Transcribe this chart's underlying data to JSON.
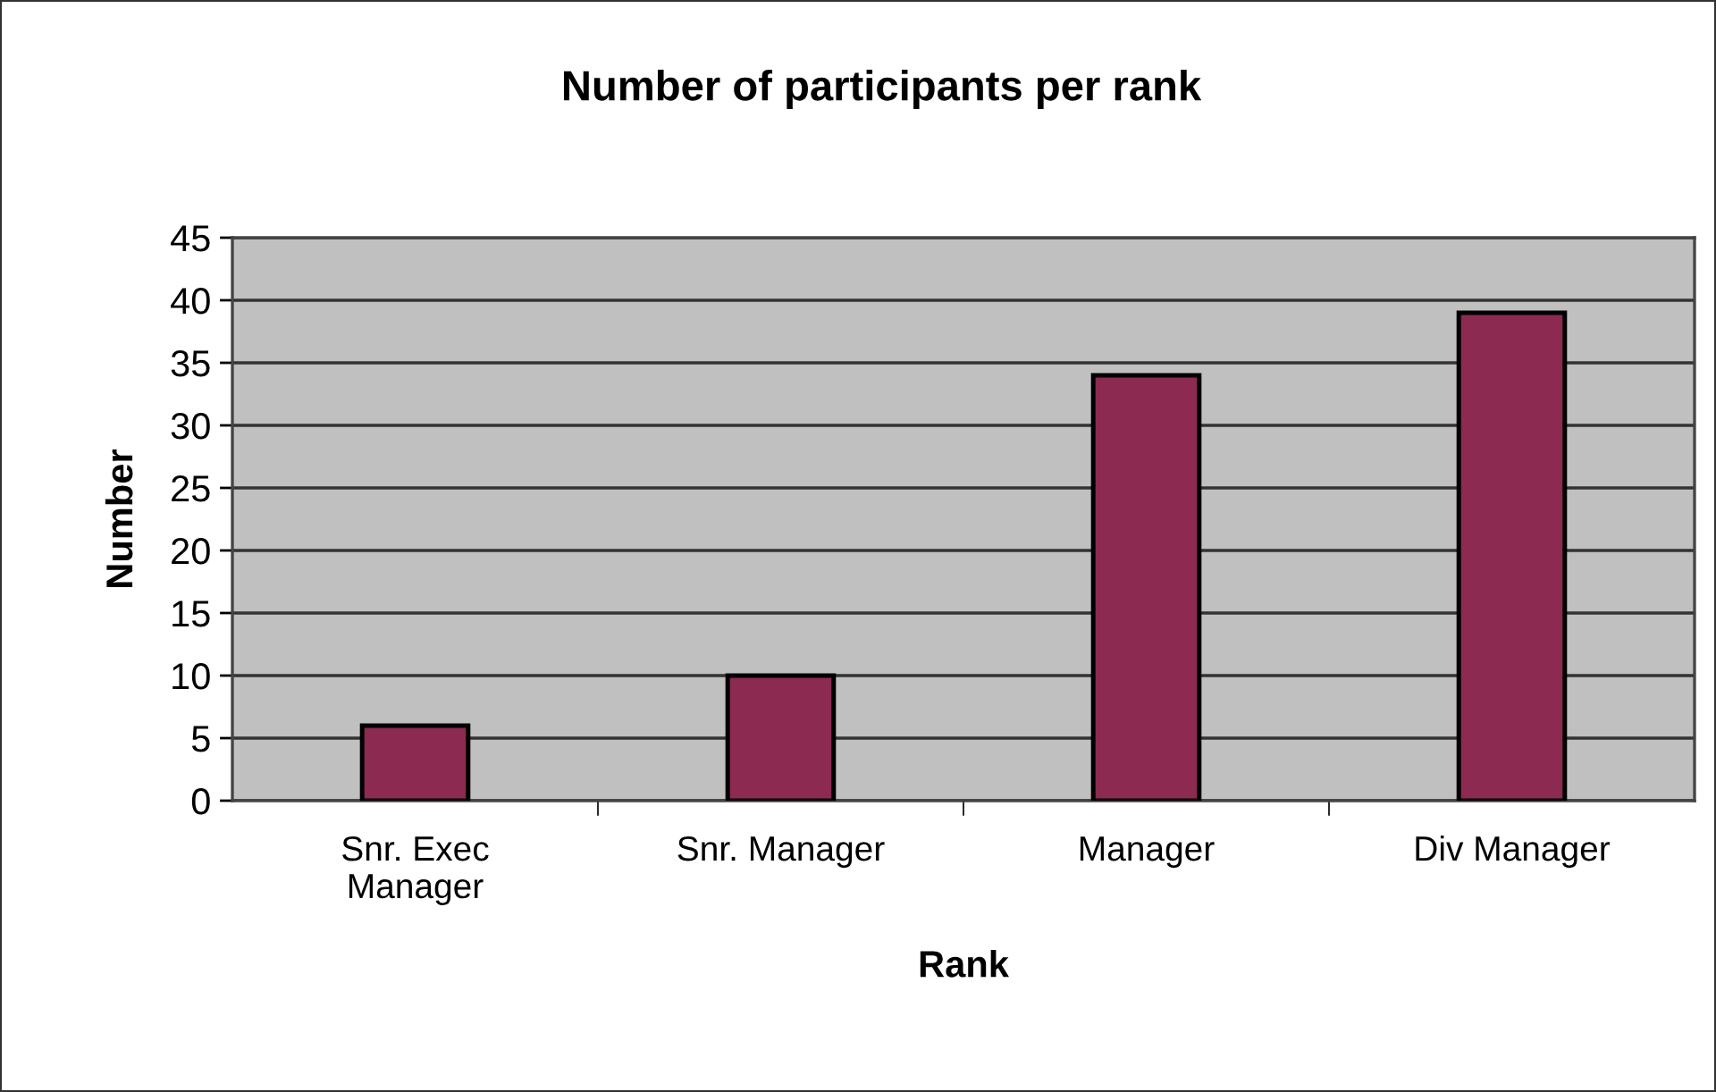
{
  "chart_data": {
    "type": "bar",
    "title": "Number of participants per rank",
    "xlabel": "Rank",
    "ylabel": "Number",
    "categories": [
      "Snr. Exec\nManager",
      "Snr. Manager",
      "Manager",
      "Div Manager"
    ],
    "values": [
      6,
      10,
      34,
      39
    ],
    "color": "#8c2a52",
    "ylim": [
      0,
      45
    ],
    "yticks": [
      0,
      5,
      10,
      15,
      20,
      25,
      30,
      35,
      40,
      45
    ],
    "grid": "y"
  }
}
